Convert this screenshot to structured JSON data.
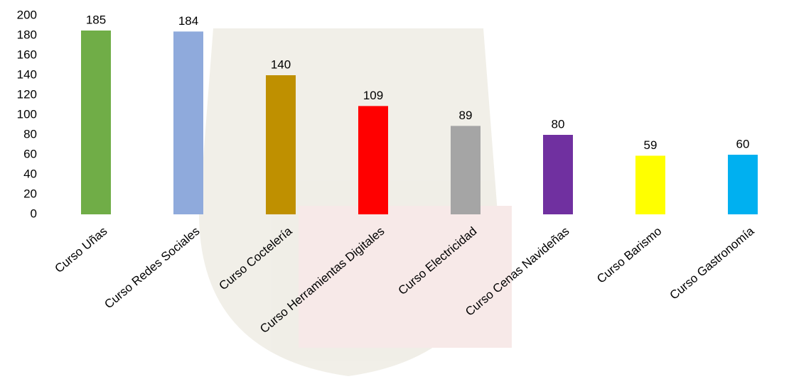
{
  "chart_data": {
    "type": "bar",
    "categories": [
      "Curso Uñas",
      "Curso Redes Sociales",
      "Curso Coctelería",
      "Curso Herramientas Digitales",
      "Curso Electricidad",
      "Curso Cenas Navideñas",
      "Curso Barismo",
      "Curso Gastronomía"
    ],
    "values": [
      185,
      184,
      140,
      109,
      89,
      80,
      59,
      60
    ],
    "colors": [
      "#70ad47",
      "#8faadc",
      "#bf9000",
      "#ff0000",
      "#a5a5a5",
      "#7030a0",
      "#ffff00",
      "#00b0f0"
    ],
    "ylim": [
      0,
      200
    ],
    "yticks": [
      0,
      20,
      40,
      60,
      80,
      100,
      120,
      140,
      160,
      180,
      200
    ],
    "grid": false
  }
}
